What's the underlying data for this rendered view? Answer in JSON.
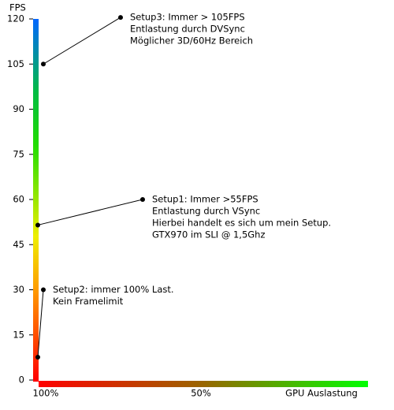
{
  "chart_data": {
    "type": "annotation",
    "y_axis_label": "FPS",
    "x_axis_label": "GPU Auslastung",
    "x_tick_labels": [
      "100%",
      "50%"
    ],
    "ylim": [
      0,
      120
    ],
    "yticks": [
      0,
      15,
      30,
      45,
      60,
      75,
      90,
      105,
      120
    ],
    "annotations": [
      {
        "lines": [
          "Setup3: Immer > 105FPS",
          "Entlastung durch DVSync",
          "Möglicher 3D/60Hz Bereich"
        ],
        "point": 105,
        "label_at": 120.5
      },
      {
        "lines": [
          "Setup1: Immer >55FPS",
          "Entlastung durch VSync",
          "Hierbei handelt es sich um mein Setup.",
          "GTX970 im SLI @ 1,5Ghz"
        ],
        "point": 51.5,
        "label_at": 60
      },
      {
        "lines": [
          "Setup2: immer 100% Last.",
          "Kein Framelimit"
        ],
        "point": 7.6,
        "label_at": 30
      }
    ]
  }
}
